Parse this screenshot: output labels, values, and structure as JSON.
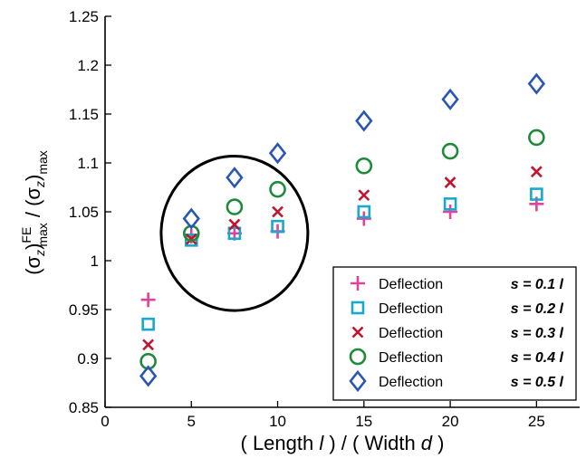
{
  "chart_data": {
    "type": "scatter",
    "xlabel": {
      "prefix": "( Length ",
      "var1": "l",
      "middle": " ) / ( Width ",
      "var2": "d",
      "suffix": " )"
    },
    "ylabel": {
      "open1": "(σ",
      "sub1": "z",
      "close1": ")",
      "sup1": "FE",
      "sub1b": "max",
      "slash": " / ",
      "open2": "(σ",
      "sub2": "z",
      "close2": ")",
      "sub2b": "max"
    },
    "xlim": [
      0,
      27.5
    ],
    "ylim": [
      0.85,
      1.25
    ],
    "xticks": [
      0,
      5,
      10,
      15,
      20,
      25
    ],
    "xtick_labels": [
      "0",
      "5",
      "10",
      "15",
      "20",
      "25"
    ],
    "yticks": [
      0.85,
      0.9,
      0.95,
      1.0,
      1.05,
      1.1,
      1.15,
      1.2,
      1.25
    ],
    "ytick_labels": [
      "0.85",
      "0.9",
      "0.95",
      "1",
      "1.05",
      "1.1",
      "1.15",
      "1.2",
      "1.25"
    ],
    "grid": false,
    "legend_position": "bottom-right",
    "series": [
      {
        "name": "Deflection",
        "s_label": "s = 0.1 l",
        "marker": "plus",
        "color": "#e0449a",
        "x": [
          2.5,
          5,
          7.5,
          10,
          15,
          20,
          25
        ],
        "y": [
          0.96,
          1.025,
          1.028,
          1.03,
          1.043,
          1.05,
          1.058
        ]
      },
      {
        "name": "Deflection",
        "s_label": "s = 0.2 l",
        "marker": "square",
        "color": "#19a9cc",
        "x": [
          2.5,
          5,
          7.5,
          10,
          15,
          20,
          25
        ],
        "y": [
          0.935,
          1.021,
          1.028,
          1.035,
          1.05,
          1.058,
          1.068
        ]
      },
      {
        "name": "Deflection",
        "s_label": "s = 0.3 l",
        "marker": "x",
        "color": "#c2142d",
        "x": [
          2.5,
          5,
          7.5,
          10,
          15,
          20,
          25
        ],
        "y": [
          0.914,
          1.022,
          1.037,
          1.05,
          1.067,
          1.08,
          1.091
        ]
      },
      {
        "name": "Deflection",
        "s_label": "s = 0.4 l",
        "marker": "circle",
        "color": "#1f8a3a",
        "x": [
          2.5,
          5,
          7.5,
          10,
          15,
          20,
          25
        ],
        "y": [
          0.897,
          1.028,
          1.055,
          1.073,
          1.097,
          1.112,
          1.126
        ]
      },
      {
        "name": "Deflection",
        "s_label": "s = 0.5 l",
        "marker": "diamond",
        "color": "#2b55b5",
        "x": [
          2.5,
          5,
          7.5,
          10,
          15,
          20,
          25
        ],
        "y": [
          0.882,
          1.043,
          1.085,
          1.11,
          1.143,
          1.165,
          1.181
        ]
      }
    ],
    "annotations": [
      {
        "type": "circle",
        "center_x": 7.5,
        "center_y": 1.028,
        "radius_x": 4.25,
        "radius_y": 0.079
      }
    ]
  }
}
